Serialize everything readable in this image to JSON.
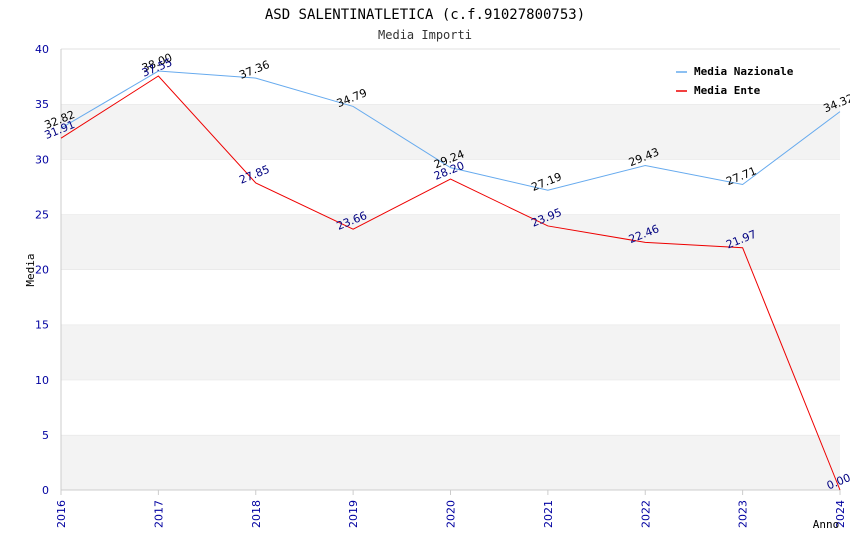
{
  "chart_data": {
    "type": "line",
    "title": "ASD SALENTINATLETICA (c.f.91027800753)",
    "subtitle": "Media Importi",
    "xlabel": "Anno",
    "ylabel": "Media",
    "categories": [
      "2016",
      "2017",
      "2018",
      "2019",
      "2020",
      "2021",
      "2022",
      "2023",
      "2024"
    ],
    "ylim": [
      0,
      40
    ],
    "yticks": [
      0,
      5,
      10,
      15,
      20,
      25,
      30,
      35,
      40
    ],
    "grid": true,
    "legend_position": "top-right",
    "series": [
      {
        "name": "Media Nazionale",
        "color": "#66aaee",
        "label_color": "#000000",
        "values": [
          32.82,
          38.0,
          37.36,
          34.79,
          29.24,
          27.19,
          29.43,
          27.71,
          34.32
        ],
        "labels": [
          "32.82",
          "38.00",
          "37.36",
          "34.79",
          "29.24",
          "27.19",
          "29.43",
          "27.71",
          "34.32"
        ]
      },
      {
        "name": "Media Ente",
        "color": "#ee0000",
        "label_color": "#000080",
        "values": [
          31.91,
          37.55,
          27.85,
          23.66,
          28.2,
          23.95,
          22.46,
          21.97,
          0.0
        ],
        "labels": [
          "31.91",
          "37.55",
          "27.85",
          "23.66",
          "28.20",
          "23.95",
          "22.46",
          "21.97",
          "0.00"
        ]
      }
    ]
  }
}
